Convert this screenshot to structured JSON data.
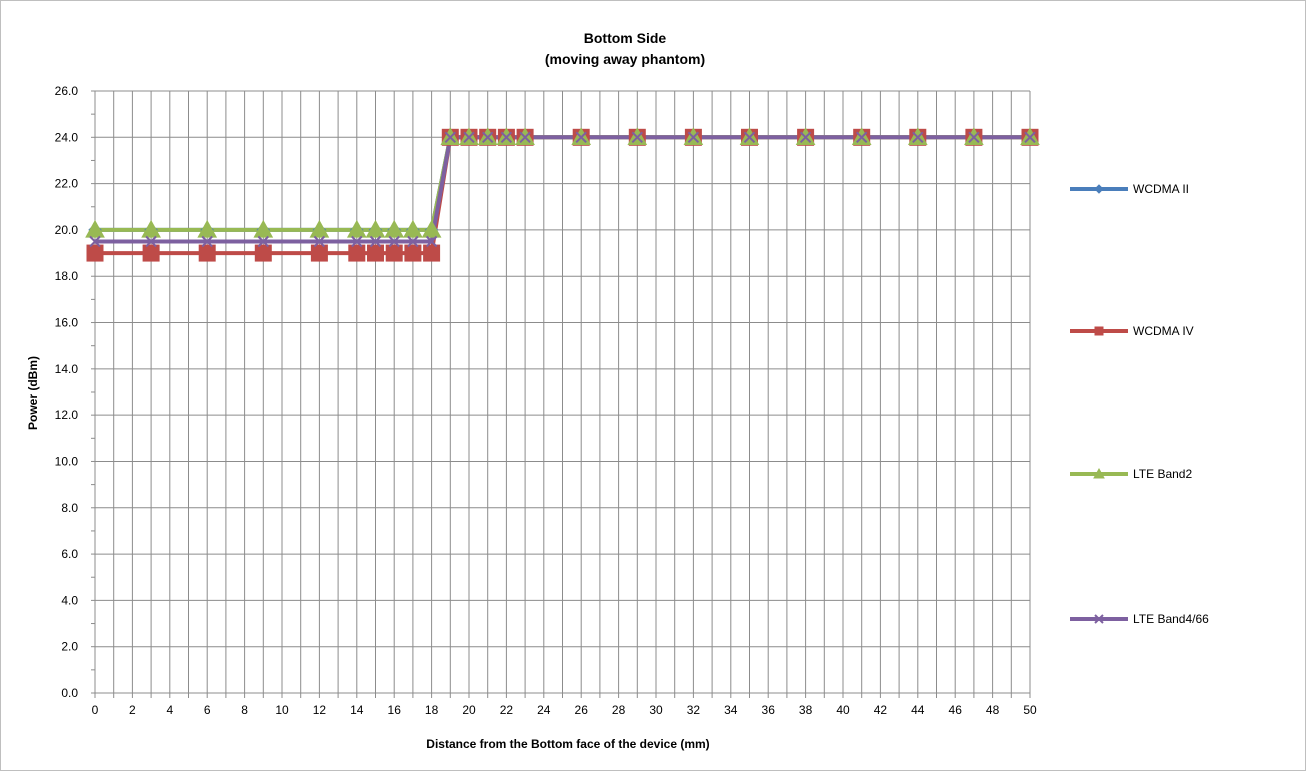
{
  "chart_data": {
    "type": "line",
    "title": "Bottom Side",
    "subtitle": "(moving away phantom)",
    "xlabel": "Distance from the Bottom face of the device (mm)",
    "ylabel": "Power (dBm)",
    "xlim": [
      0,
      50
    ],
    "ylim": [
      0,
      26
    ],
    "x_ticks": [
      "0",
      "2",
      "4",
      "6",
      "8",
      "10",
      "12",
      "14",
      "16",
      "18",
      "20",
      "22",
      "24",
      "26",
      "28",
      "30",
      "32",
      "34",
      "36",
      "38",
      "40",
      "42",
      "44",
      "46",
      "48",
      "50"
    ],
    "y_ticks": [
      "0.0",
      "2.0",
      "4.0",
      "6.0",
      "8.0",
      "10.0",
      "12.0",
      "14.0",
      "16.0",
      "18.0",
      "20.0",
      "22.0",
      "24.0",
      "26.0"
    ],
    "grid": true,
    "legend_position": "right",
    "x": [
      0,
      3,
      6,
      9,
      12,
      14,
      15,
      16,
      17,
      18,
      19,
      20,
      21,
      22,
      23,
      26,
      29,
      32,
      35,
      38,
      41,
      44,
      47,
      50
    ],
    "series": [
      {
        "name": "WCDMA II",
        "color": "#4a7ebb",
        "marker": "diamond",
        "values": [
          20,
          20,
          20,
          20,
          20,
          20,
          20,
          20,
          20,
          20,
          24,
          24,
          24,
          24,
          24,
          24,
          24,
          24,
          24,
          24,
          24,
          24,
          24,
          24
        ]
      },
      {
        "name": "WCDMA IV",
        "color": "#be4b48",
        "marker": "square",
        "values": [
          19,
          19,
          19,
          19,
          19,
          19,
          19,
          19,
          19,
          19,
          24,
          24,
          24,
          24,
          24,
          24,
          24,
          24,
          24,
          24,
          24,
          24,
          24,
          24
        ]
      },
      {
        "name": "LTE Band2",
        "color": "#98b954",
        "marker": "triangle",
        "values": [
          20,
          20,
          20,
          20,
          20,
          20,
          20,
          20,
          20,
          20,
          24,
          24,
          24,
          24,
          24,
          24,
          24,
          24,
          24,
          24,
          24,
          24,
          24,
          24
        ]
      },
      {
        "name": "LTE Band4/66",
        "color": "#7d60a0",
        "marker": "x",
        "values": [
          19.5,
          19.5,
          19.5,
          19.5,
          19.5,
          19.5,
          19.5,
          19.5,
          19.5,
          19.5,
          24,
          24,
          24,
          24,
          24,
          24,
          24,
          24,
          24,
          24,
          24,
          24,
          24,
          24
        ]
      }
    ]
  }
}
